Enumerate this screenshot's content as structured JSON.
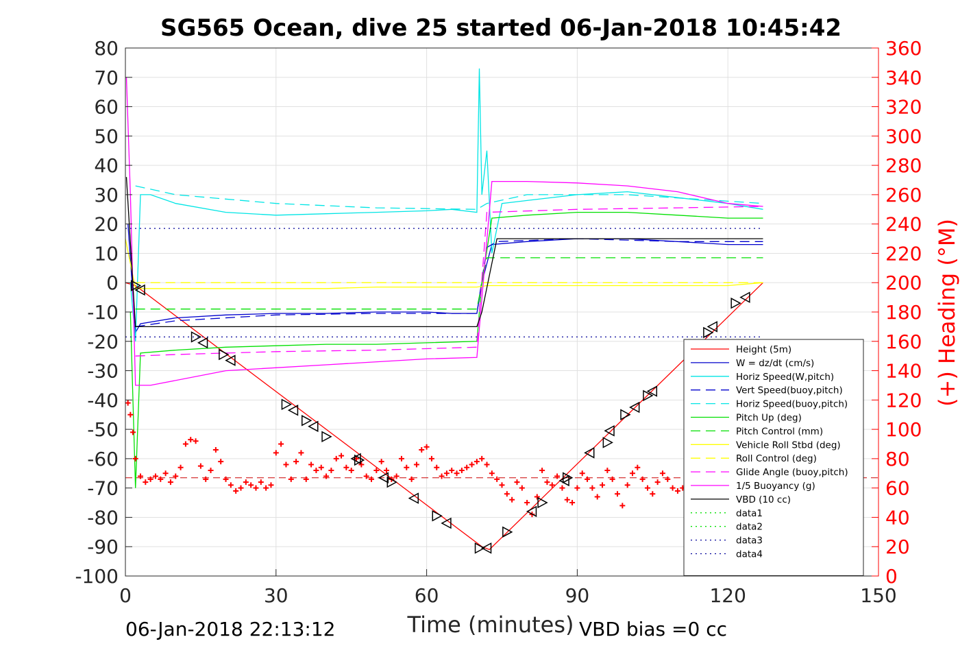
{
  "chart_data": {
    "type": "line",
    "title": "SG565 Ocean, dive 25 started 06-Jan-2018 10:45:42",
    "xlabel": "Time (minutes)",
    "ylabel_right": "(+) Heading (°M)",
    "xlim": [
      0,
      150
    ],
    "ylim": [
      -100,
      80
    ],
    "ylim_right": [
      0,
      360
    ],
    "x_ticks": [
      0,
      30,
      60,
      90,
      120,
      150
    ],
    "y_ticks": [
      80,
      70,
      60,
      50,
      40,
      30,
      20,
      10,
      0,
      -10,
      -20,
      -30,
      -40,
      -50,
      -60,
      -70,
      -80,
      -90,
      -100
    ],
    "y_ticks_right": [
      360,
      340,
      320,
      300,
      280,
      260,
      240,
      220,
      200,
      180,
      160,
      140,
      120,
      100,
      80,
      60,
      40,
      20,
      0
    ],
    "grid": true,
    "legend_position": "bottom-right",
    "footer_left": "06-Jan-2018 22:13:12",
    "footer_right": "VBD bias =0 cc",
    "series": [
      {
        "name": "Height (5m)",
        "color": "#ff0000",
        "style": "solid",
        "x": [
          0,
          2,
          71,
          72.5,
          127
        ],
        "y": [
          0,
          -1,
          -90,
          -91,
          0
        ]
      },
      {
        "name": "W = dz/dt (cm/s)",
        "color": "#0000cc",
        "style": "solid",
        "x": [
          0.5,
          2,
          3,
          10,
          20,
          30,
          40,
          50,
          60,
          65,
          70,
          71,
          73,
          80,
          90,
          100,
          110,
          120,
          127
        ],
        "y": [
          20,
          -17,
          -14,
          -12,
          -11,
          -10.5,
          -10.5,
          -10,
          -10,
          -10.5,
          -10.5,
          0,
          13,
          14,
          15,
          15,
          14,
          13,
          13
        ]
      },
      {
        "name": "Horiz Speed(W,pitch)",
        "color": "#00e5e5",
        "style": "solid",
        "x": [
          1,
          2,
          3,
          5,
          10,
          20,
          30,
          40,
          50,
          60,
          65,
          70,
          70.5,
          71,
          72,
          73,
          75,
          80,
          90,
          100,
          110,
          120,
          127
        ],
        "y": [
          0,
          -20,
          30,
          30,
          27,
          24,
          23,
          23.5,
          24,
          24.5,
          25,
          24,
          73,
          30,
          45,
          10,
          27,
          28,
          30,
          31,
          29,
          27,
          25
        ]
      },
      {
        "name": "Vert Speed(buoy,pitch)",
        "color": "#0000cc",
        "style": "dash",
        "x": [
          2,
          10,
          30,
          50,
          70,
          72,
          74,
          90,
          110,
          127
        ],
        "y": [
          -15,
          -13,
          -11,
          -10.5,
          -10.5,
          12,
          14,
          15,
          14,
          14
        ]
      },
      {
        "name": "Horiz Speed(buoy,pitch)",
        "color": "#00e5e5",
        "style": "dash",
        "x": [
          2,
          10,
          30,
          50,
          70,
          72,
          80,
          100,
          127
        ],
        "y": [
          33,
          30,
          27,
          25.5,
          25,
          27,
          30,
          30,
          27
        ]
      },
      {
        "name": "Pitch Up (deg)",
        "color": "#00e000",
        "style": "solid",
        "x": [
          1,
          2,
          3,
          10,
          20,
          30,
          40,
          50,
          60,
          70,
          71,
          73,
          80,
          90,
          100,
          110,
          120,
          127
        ],
        "y": [
          -10,
          -70,
          -24,
          -23,
          -22,
          -21.5,
          -21,
          -21,
          -20.5,
          -20,
          0,
          22,
          23,
          24,
          24,
          23,
          22,
          22
        ]
      },
      {
        "name": "Pitch Control (mm)",
        "color": "#00e000",
        "style": "dash",
        "x": [
          2,
          70,
          72,
          127
        ],
        "y": [
          -9,
          -9,
          8.5,
          8.5
        ]
      },
      {
        "name": "Vehicle Roll Stbd (deg)",
        "color": "#ffff00",
        "style": "solid",
        "x": [
          0,
          2,
          10,
          20,
          30,
          40,
          50,
          60,
          70,
          72,
          80,
          90,
          100,
          110,
          120,
          127
        ],
        "y": [
          15,
          -2,
          -2,
          -2,
          -2,
          -2,
          -1.5,
          -1.5,
          -1.5,
          -1,
          -1,
          -1,
          -1,
          -1,
          -1,
          0
        ]
      },
      {
        "name": "Roll Control (deg)",
        "color": "#ffff00",
        "style": "dash",
        "x": [
          2,
          127
        ],
        "y": [
          0,
          0
        ]
      },
      {
        "name": "Glide Angle (buoy,pitch)",
        "color": "#ff00ff",
        "style": "dash",
        "x": [
          2,
          10,
          30,
          50,
          70,
          72,
          90,
          110,
          127
        ],
        "y": [
          -25,
          -24.5,
          -23.5,
          -23,
          -22,
          24,
          25,
          25.5,
          26
        ]
      },
      {
        "name": "1/5 Buoyancy (g)",
        "color": "#ff00ff",
        "style": "solid",
        "x": [
          0.2,
          1,
          2,
          5,
          20,
          40,
          60,
          70,
          73,
          80,
          90,
          100,
          110,
          120,
          127
        ],
        "y": [
          70,
          30,
          -35,
          -35,
          -30,
          -28,
          -26,
          -25.5,
          34.5,
          34.5,
          34,
          33,
          31,
          27,
          26
        ]
      },
      {
        "name": "VBD (10 cc)",
        "color": "#000000",
        "style": "solid",
        "x": [
          0.2,
          2,
          3,
          70,
          71,
          74,
          127
        ],
        "y": [
          36,
          -15,
          -15,
          -15,
          -10,
          15,
          15
        ]
      },
      {
        "name": "data1",
        "color": "#00e000",
        "style": "dot",
        "x": [],
        "y": []
      },
      {
        "name": "data2",
        "color": "#00e000",
        "style": "dot",
        "x": [],
        "y": []
      },
      {
        "name": "data3",
        "color": "#000099",
        "style": "dot",
        "x": [
          0,
          127
        ],
        "y": [
          18.5,
          18.5
        ]
      },
      {
        "name": "data4",
        "color": "#000099",
        "style": "dot",
        "x": [
          0,
          127
        ],
        "y": [
          -18.5,
          -18.5
        ]
      }
    ],
    "heading": {
      "color": "#ff0000",
      "marker": "+",
      "axis": "right",
      "mean_line": 67,
      "x": [
        0.5,
        1,
        1.5,
        2,
        3,
        4,
        5,
        6,
        7,
        8,
        9,
        10,
        11,
        12,
        13,
        14,
        15,
        16,
        17,
        18,
        19,
        20,
        21,
        22,
        23,
        24,
        25,
        26,
        27,
        28,
        29,
        30,
        31,
        32,
        33,
        34,
        35,
        36,
        37,
        38,
        39,
        40,
        41,
        42,
        43,
        44,
        45,
        46,
        47,
        48,
        49,
        50,
        51,
        52,
        53,
        54,
        55,
        56,
        57,
        58,
        59,
        60,
        61,
        62,
        63,
        64,
        65,
        66,
        67,
        68,
        69,
        70,
        71,
        72,
        73,
        74,
        75,
        76,
        77,
        78,
        79,
        80,
        81,
        82,
        83,
        84,
        85,
        86,
        87,
        88,
        89,
        90,
        91,
        92,
        93,
        94,
        95,
        96,
        97,
        98,
        99,
        100,
        101,
        102,
        103,
        104,
        105,
        106,
        107,
        108,
        109,
        110,
        111,
        112
      ],
      "y": [
        118,
        110,
        98,
        80,
        68,
        64,
        66,
        68,
        66,
        70,
        64,
        68,
        74,
        90,
        93,
        92,
        75,
        66,
        72,
        86,
        78,
        66,
        62,
        58,
        60,
        64,
        62,
        60,
        64,
        60,
        62,
        84,
        90,
        76,
        66,
        78,
        84,
        66,
        76,
        72,
        74,
        68,
        72,
        80,
        82,
        74,
        72,
        80,
        76,
        68,
        66,
        72,
        78,
        72,
        66,
        68,
        80,
        74,
        66,
        76,
        86,
        88,
        80,
        74,
        68,
        70,
        72,
        70,
        72,
        74,
        76,
        78,
        80,
        76,
        70,
        66,
        62,
        56,
        52,
        64,
        60,
        50,
        42,
        54,
        72,
        64,
        62,
        68,
        60,
        52,
        50,
        60,
        70,
        66,
        60,
        54,
        62,
        72,
        66,
        56,
        48,
        62,
        70,
        74,
        66,
        60,
        56,
        64,
        70,
        66,
        60,
        58,
        60,
        62
      ]
    },
    "depth_markers": {
      "x": [
        2,
        3,
        14,
        15.5,
        19.5,
        21,
        32,
        33.5,
        36,
        37.5,
        40,
        46,
        46.5,
        51.5,
        53,
        57.5,
        62,
        64,
        70.5,
        72,
        76,
        81,
        83,
        87.5,
        88,
        92.5,
        96,
        96.5,
        99.5,
        101.5,
        104,
        105,
        116,
        117,
        121.5,
        123.5
      ],
      "y": [
        -1,
        -2.5,
        -18.5,
        -20.5,
        -24.5,
        -26.5,
        -41.5,
        -43.5,
        -47,
        -49,
        -52.5,
        -60,
        -60.5,
        -66.5,
        -68,
        -73.5,
        -79.5,
        -82,
        -90.5,
        -90.5,
        -85,
        -78,
        -75,
        -67.5,
        -66.5,
        -58,
        -54.5,
        -50.5,
        -45,
        -42.5,
        -38.5,
        -37,
        -17,
        -15,
        -7,
        -5
      ]
    }
  }
}
